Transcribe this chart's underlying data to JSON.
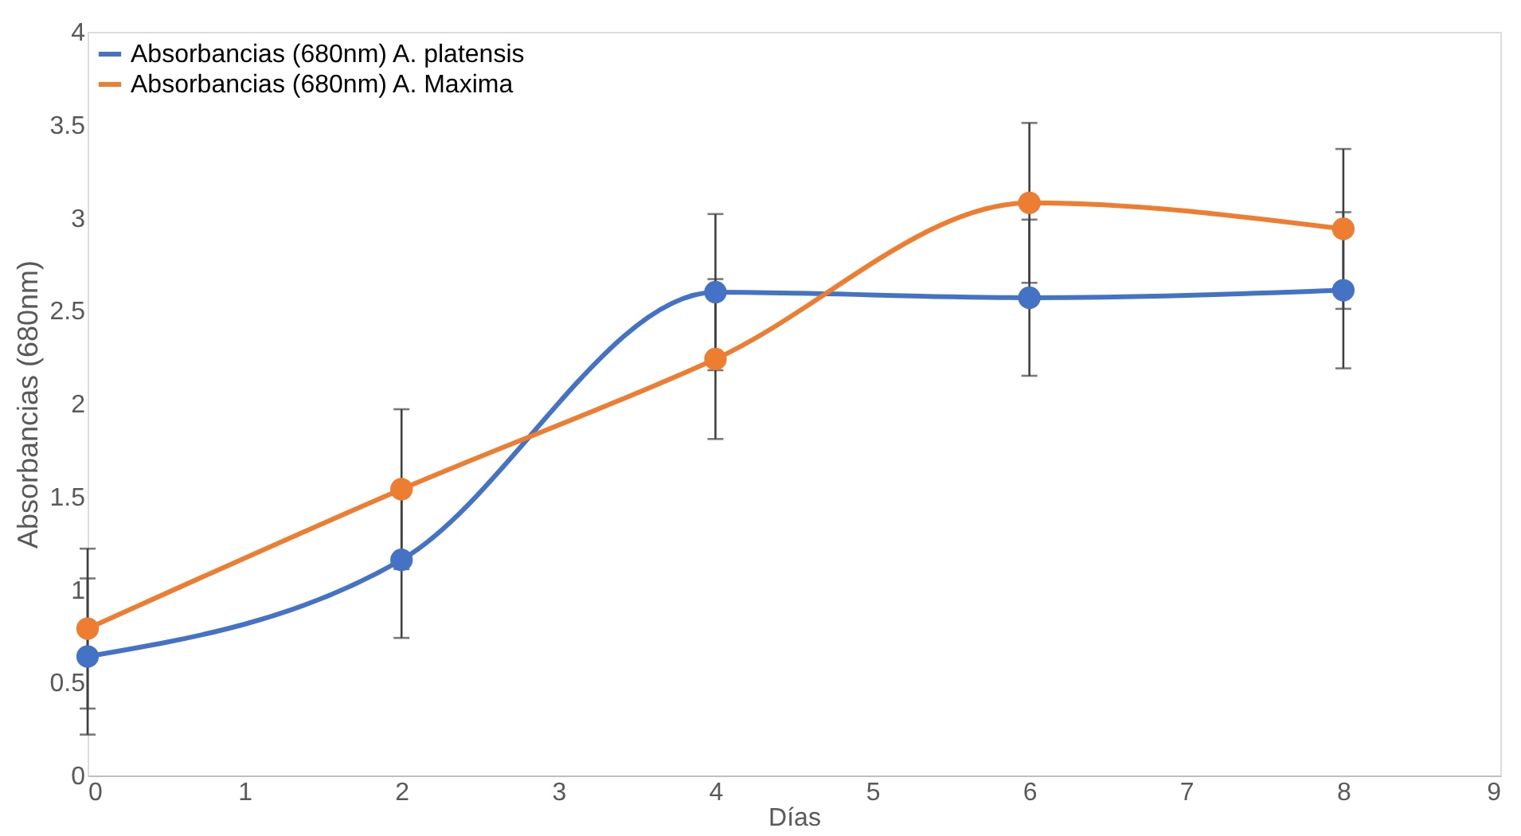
{
  "chart_data": {
    "type": "line",
    "xlabel": "Días",
    "ylabel": "Absorbancias (680nm)",
    "x": [
      0,
      2,
      4,
      6,
      8
    ],
    "series": [
      {
        "name": "Absorbancias (680nm) A. platensis",
        "color": "#4472c4",
        "values": [
          0.64,
          1.16,
          2.6,
          2.57,
          2.61
        ],
        "errors": [
          0.42,
          0.42,
          0.42,
          0.42,
          0.42
        ]
      },
      {
        "name": "Absorbancias (680nm) A. Maxima",
        "color": "#ed7d31",
        "values": [
          0.79,
          1.54,
          2.24,
          3.08,
          2.94
        ],
        "errors": [
          0.43,
          0.43,
          0.43,
          0.43,
          0.43
        ]
      }
    ],
    "xlim": [
      0,
      9
    ],
    "xticks": [
      0,
      1,
      2,
      3,
      4,
      5,
      6,
      7,
      8,
      9
    ],
    "ylim": [
      0,
      4
    ],
    "yticks": [
      0,
      0.5,
      1,
      1.5,
      2,
      2.5,
      3,
      3.5,
      4
    ],
    "grid": false,
    "legend": "top left",
    "marker": "circle",
    "line_style": "solid"
  }
}
